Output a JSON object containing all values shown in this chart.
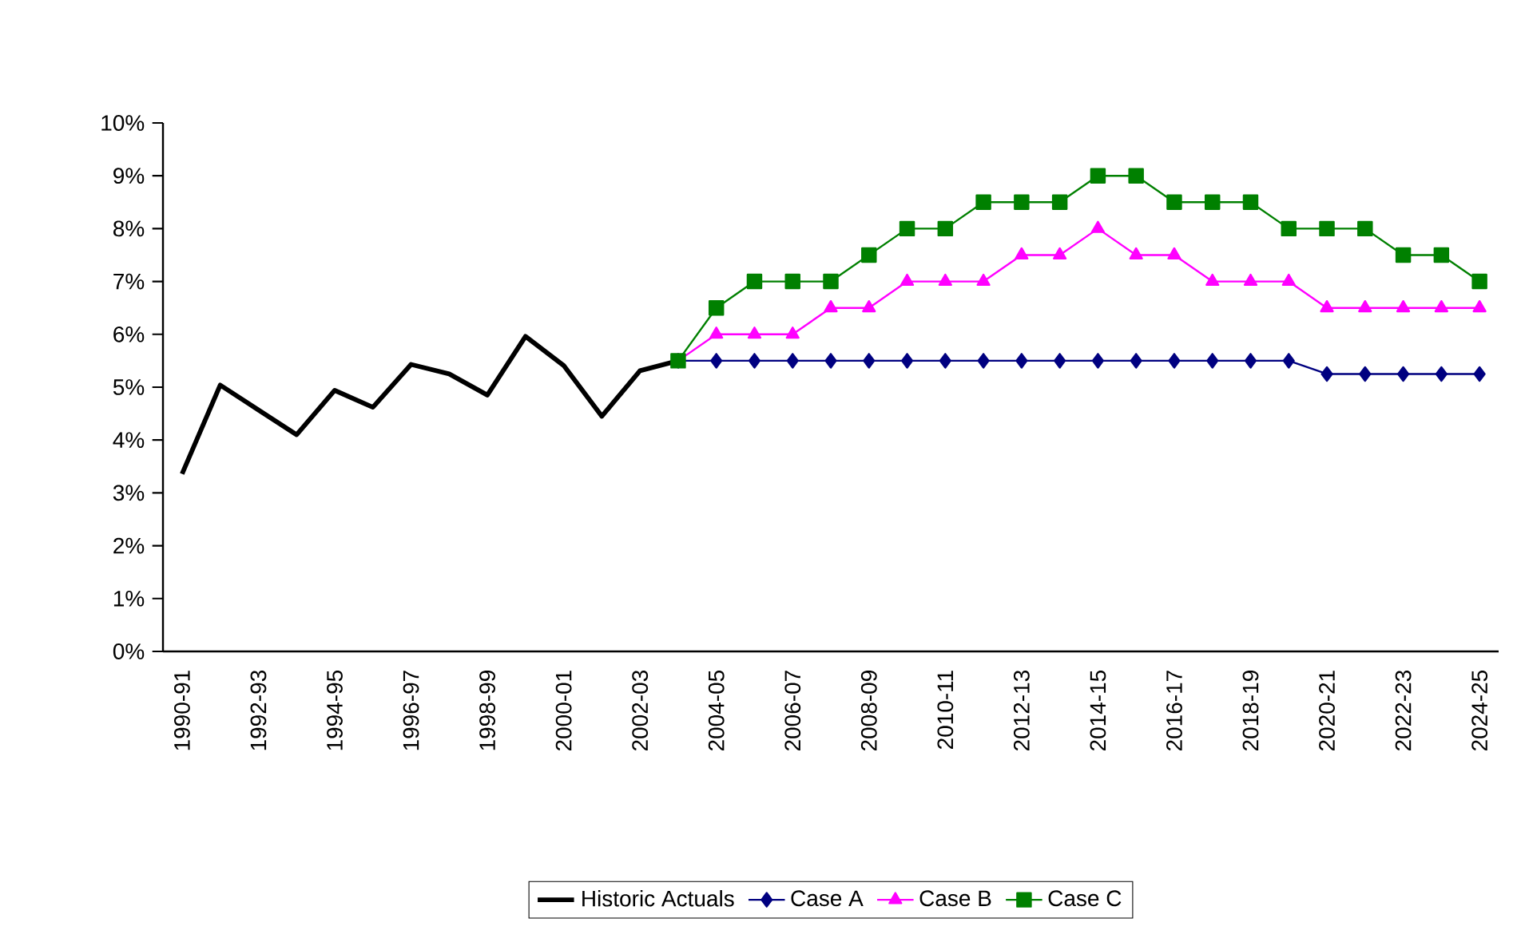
{
  "chart_data": {
    "type": "line",
    "categories": [
      "1990-91",
      null,
      "1992-93",
      null,
      "1994-95",
      null,
      "1996-97",
      null,
      "1998-99",
      null,
      "2000-01",
      null,
      "2002-03",
      null,
      "2004-05",
      null,
      "2006-07",
      null,
      "2008-09",
      null,
      "2010-11",
      null,
      "2012-13",
      null,
      "2014-15",
      null,
      "2016-17",
      null,
      "2018-19",
      null,
      "2020-21",
      null,
      "2022-23",
      null,
      "2024-25"
    ],
    "series": [
      {
        "name": "Historic Actuals",
        "color": "#000000",
        "marker": "none",
        "values": [
          3.36,
          5.04,
          4.57,
          4.1,
          4.94,
          4.62,
          5.43,
          5.25,
          4.85,
          5.96,
          5.41,
          4.45,
          5.31,
          5.5,
          null,
          null,
          null,
          null,
          null,
          null,
          null,
          null,
          null,
          null,
          null,
          null,
          null,
          null,
          null,
          null,
          null,
          null,
          null,
          null,
          null
        ]
      },
      {
        "name": "Case A",
        "color": "#000080",
        "marker": "diamond",
        "values": [
          null,
          null,
          null,
          null,
          null,
          null,
          null,
          null,
          null,
          null,
          null,
          null,
          null,
          5.5,
          5.5,
          5.5,
          5.5,
          5.5,
          5.5,
          5.5,
          5.5,
          5.5,
          5.5,
          5.5,
          5.5,
          5.5,
          5.5,
          5.5,
          5.5,
          5.5,
          5.25,
          5.25,
          5.25,
          5.25,
          5.25
        ]
      },
      {
        "name": "Case B",
        "color": "#ff00ff",
        "marker": "triangle",
        "values": [
          null,
          null,
          null,
          null,
          null,
          null,
          null,
          null,
          null,
          null,
          null,
          null,
          null,
          5.5,
          6,
          6,
          6,
          6.5,
          6.5,
          7,
          7,
          7,
          7.5,
          7.5,
          8,
          7.5,
          7.5,
          7,
          7,
          7,
          6.5,
          6.5,
          6.5,
          6.5,
          6.5
        ]
      },
      {
        "name": "Case C",
        "color": "#008000",
        "marker": "square",
        "values": [
          null,
          null,
          null,
          null,
          null,
          null,
          null,
          null,
          null,
          null,
          null,
          null,
          null,
          5.5,
          6.5,
          7,
          7,
          7,
          7.5,
          8,
          8,
          8.5,
          8.5,
          8.5,
          9,
          9,
          8.5,
          8.5,
          8.5,
          8,
          8,
          8,
          7.5,
          7.5,
          7
        ]
      }
    ],
    "ylim": [
      0,
      10
    ],
    "yticks": [
      {
        "value": 0,
        "label": "0%"
      },
      {
        "value": 1,
        "label": "1%"
      },
      {
        "value": 2,
        "label": "2%"
      },
      {
        "value": 3,
        "label": "3%"
      },
      {
        "value": 4,
        "label": "4%"
      },
      {
        "value": 5,
        "label": "5%"
      },
      {
        "value": 6,
        "label": "6%"
      },
      {
        "value": 7,
        "label": "7%"
      },
      {
        "value": 8,
        "label": "8%"
      },
      {
        "value": 9,
        "label": "9%"
      },
      {
        "value": 10,
        "label": "10%"
      }
    ],
    "grid": false,
    "legend": "bottom"
  }
}
